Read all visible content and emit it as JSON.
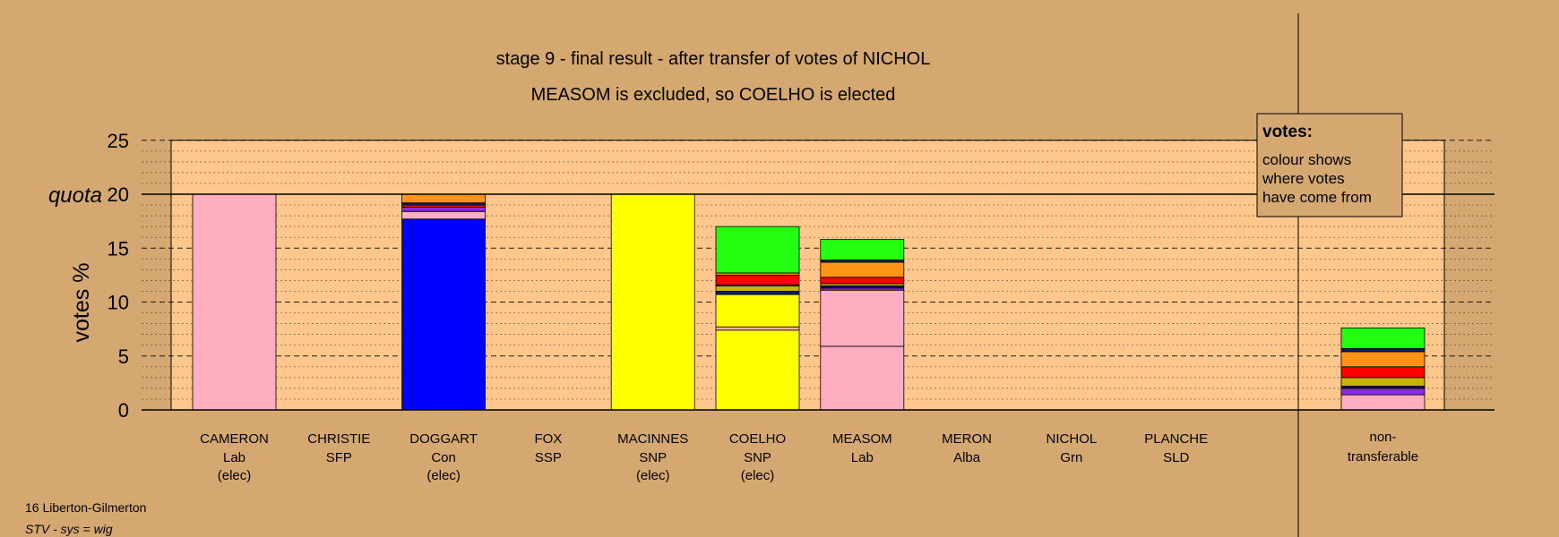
{
  "chart_data": {
    "type": "bar",
    "stacked": true,
    "title": "stage 9 - final result - after transfer of votes of NICHOL",
    "subtitle": "MEASOM is excluded, so COELHO is elected",
    "ylabel": "votes %",
    "ylim": [
      0,
      25
    ],
    "yticks": [
      "0",
      "5",
      "10",
      "15",
      "20",
      "25"
    ],
    "quota_label": "quota",
    "quota_value": 20,
    "grid": true,
    "legend_position": "top-right",
    "legend": {
      "title": "votes:",
      "lines": [
        "colour shows",
        "where votes",
        "have come from"
      ]
    },
    "colors": {
      "background": "#d5a872",
      "plot_area": "#ffc78c",
      "Lab": "#ffadc0",
      "Con": "#0000ff",
      "SNP": "#ffff00",
      "Grn": "#22ff11",
      "LD": "#ff9418",
      "Alba": "#0a1a66",
      "SSP": "#ff0000",
      "SLD": "#c8b400",
      "SFP": "#8a2be2"
    },
    "candidates": [
      {
        "name": "CAMERON",
        "party": "Lab",
        "status": "(elec)",
        "segments": [
          {
            "from": "Lab",
            "value": 20.0
          }
        ]
      },
      {
        "name": "CHRISTIE",
        "party": "SFP",
        "status": "",
        "segments": []
      },
      {
        "name": "DOGGART",
        "party": "Con",
        "status": "(elec)",
        "segments": [
          {
            "from": "Con",
            "value": 17.7
          },
          {
            "from": "Lab",
            "value": 0.7
          },
          {
            "from": "SFP",
            "value": 0.4
          },
          {
            "from": "SSP",
            "value": 0.2
          },
          {
            "from": "Alba",
            "value": 0.2
          },
          {
            "from": "LD",
            "value": 0.8
          }
        ]
      },
      {
        "name": "FOX",
        "party": "SSP",
        "status": "",
        "segments": []
      },
      {
        "name": "MACINNES",
        "party": "SNP",
        "status": "(elec)",
        "segments": [
          {
            "from": "SNP",
            "value": 20.0
          }
        ]
      },
      {
        "name": "COELHO",
        "party": "SNP",
        "status": "(elec)",
        "segments": [
          {
            "from": "SNP",
            "value": 7.4
          },
          {
            "from": "Lab",
            "value": 0.3
          },
          {
            "from": "SNP",
            "value": 3.0
          },
          {
            "from": "Alba",
            "value": 0.3
          },
          {
            "from": "SLD",
            "value": 0.5
          },
          {
            "from": "SFP",
            "value": 0.1
          },
          {
            "from": "SSP",
            "value": 0.9
          },
          {
            "from": "LD",
            "value": 0.2
          },
          {
            "from": "Grn",
            "value": 4.3
          }
        ]
      },
      {
        "name": "MEASOM",
        "party": "Lab",
        "status": "",
        "segments": [
          {
            "from": "Lab",
            "value": 5.9
          },
          {
            "from": "Lab",
            "value": 5.2
          },
          {
            "from": "SFP",
            "value": 0.2
          },
          {
            "from": "Alba",
            "value": 0.2
          },
          {
            "from": "SLD",
            "value": 0.2
          },
          {
            "from": "SSP",
            "value": 0.6
          },
          {
            "from": "LD",
            "value": 1.4
          },
          {
            "from": "Alba",
            "value": 0.2
          },
          {
            "from": "Grn",
            "value": 1.9
          }
        ]
      },
      {
        "name": "MERON",
        "party": "Alba",
        "status": "",
        "segments": []
      },
      {
        "name": "NICHOL",
        "party": "Grn",
        "status": "",
        "segments": []
      },
      {
        "name": "PLANCHE",
        "party": "SLD",
        "status": "",
        "segments": []
      }
    ],
    "nontransferable": {
      "label_line1": "non-",
      "label_line2": "transferable",
      "segments": [
        {
          "from": "Lab",
          "value": 1.4
        },
        {
          "from": "SFP",
          "value": 0.6
        },
        {
          "from": "Alba",
          "value": 0.2
        },
        {
          "from": "SLD",
          "value": 0.8
        },
        {
          "from": "SSP",
          "value": 1.0
        },
        {
          "from": "LD",
          "value": 1.4
        },
        {
          "from": "Alba",
          "value": 0.3
        },
        {
          "from": "Grn",
          "value": 1.9
        }
      ]
    }
  },
  "footer": {
    "ward": "16 Liberton-Gilmerton",
    "system": "STV - sys = wig"
  }
}
